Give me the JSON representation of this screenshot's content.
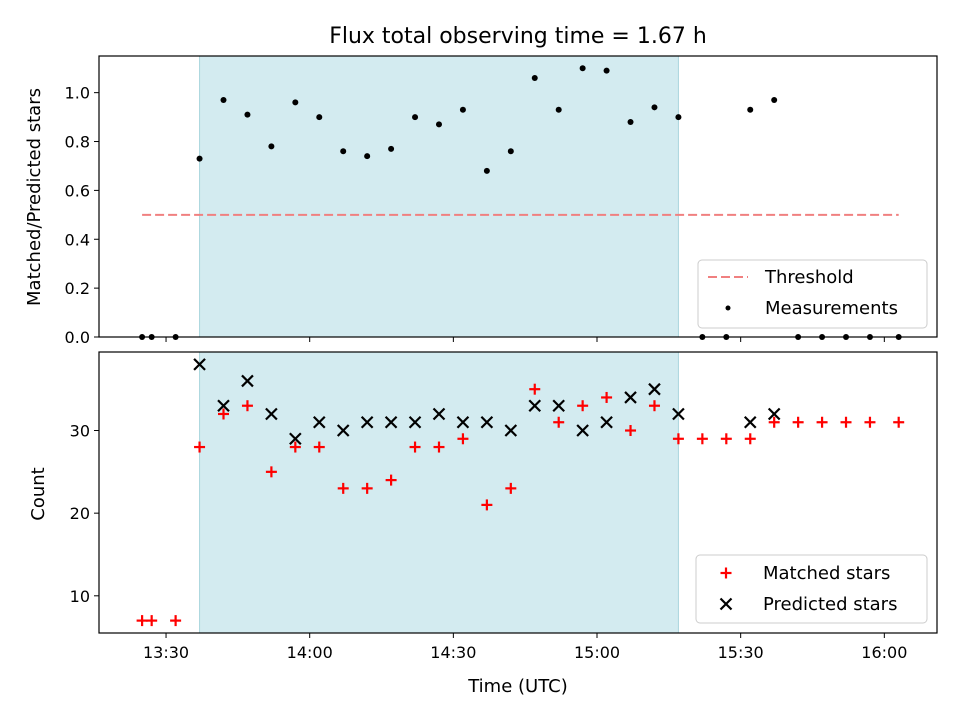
{
  "chart_data": [
    {
      "type": "scatter",
      "title": "Flux total observing time = 1.67 h",
      "xlabel": "",
      "ylabel": "Matched/Predicted stars",
      "ylim": [
        0,
        1.15
      ],
      "yticks": [
        "0.0",
        "0.2",
        "0.4",
        "0.6",
        "0.8",
        "1.0"
      ],
      "yticks_values": [
        0,
        0.2,
        0.4,
        0.6,
        0.8,
        1.0
      ],
      "threshold": {
        "label": "Threshold",
        "value": 0.5,
        "x_start": "13:25",
        "x_end": "16:03",
        "color": "#f08080"
      },
      "highlight": {
        "start": "13:37",
        "end": "15:17",
        "color": "#d3ebf0"
      },
      "legend_position": "lower-right",
      "series": [
        {
          "name": "Measurements",
          "color": "#000000",
          "points": [
            [
              "13:25",
              0.0
            ],
            [
              "13:27",
              0.0
            ],
            [
              "13:32",
              0.0
            ],
            [
              "13:37",
              0.73
            ],
            [
              "13:42",
              0.97
            ],
            [
              "13:47",
              0.91
            ],
            [
              "13:52",
              0.78
            ],
            [
              "13:57",
              0.96
            ],
            [
              "14:02",
              0.9
            ],
            [
              "14:07",
              0.76
            ],
            [
              "14:12",
              0.74
            ],
            [
              "14:17",
              0.77
            ],
            [
              "14:22",
              0.9
            ],
            [
              "14:27",
              0.87
            ],
            [
              "14:32",
              0.93
            ],
            [
              "14:37",
              0.68
            ],
            [
              "14:42",
              0.76
            ],
            [
              "14:47",
              1.06
            ],
            [
              "14:52",
              0.93
            ],
            [
              "14:57",
              1.1
            ],
            [
              "15:02",
              1.09
            ],
            [
              "15:07",
              0.88
            ],
            [
              "15:12",
              0.94
            ],
            [
              "15:17",
              0.9
            ],
            [
              "15:22",
              0.0
            ],
            [
              "15:27",
              0.0
            ],
            [
              "15:32",
              0.93
            ],
            [
              "15:37",
              0.97
            ],
            [
              "15:42",
              0.0
            ],
            [
              "15:47",
              0.0
            ],
            [
              "15:52",
              0.0
            ],
            [
              "15:57",
              0.0
            ],
            [
              "16:03",
              0.0
            ]
          ]
        }
      ]
    },
    {
      "type": "scatter",
      "title": "",
      "xlabel": "Time (UTC)",
      "ylabel": "Count",
      "ylim": [
        5.5,
        39.5
      ],
      "yticks": [
        "10",
        "20",
        "30"
      ],
      "yticks_values": [
        10,
        20,
        30
      ],
      "xlim": [
        "13:16",
        "16:11"
      ],
      "xticks": [
        "13:30",
        "14:00",
        "14:30",
        "15:00",
        "15:30",
        "16:00"
      ],
      "highlight": {
        "start": "13:37",
        "end": "15:17",
        "color": "#d3ebf0"
      },
      "legend_position": "lower-right",
      "series": [
        {
          "name": "Matched stars",
          "color": "#ff0000",
          "marker": "plus",
          "points": [
            [
              "13:25",
              7
            ],
            [
              "13:27",
              7
            ],
            [
              "13:32",
              7
            ],
            [
              "13:37",
              28
            ],
            [
              "13:42",
              32
            ],
            [
              "13:47",
              33
            ],
            [
              "13:52",
              25
            ],
            [
              "13:57",
              28
            ],
            [
              "14:02",
              28
            ],
            [
              "14:07",
              23
            ],
            [
              "14:12",
              23
            ],
            [
              "14:17",
              24
            ],
            [
              "14:22",
              28
            ],
            [
              "14:27",
              28
            ],
            [
              "14:32",
              29
            ],
            [
              "14:37",
              21
            ],
            [
              "14:42",
              23
            ],
            [
              "14:47",
              35
            ],
            [
              "14:52",
              31
            ],
            [
              "14:57",
              33
            ],
            [
              "15:02",
              34
            ],
            [
              "15:07",
              30
            ],
            [
              "15:12",
              33
            ],
            [
              "15:17",
              29
            ],
            [
              "15:22",
              29
            ],
            [
              "15:27",
              29
            ],
            [
              "15:32",
              29
            ],
            [
              "15:37",
              31
            ],
            [
              "15:42",
              31
            ],
            [
              "15:47",
              31
            ],
            [
              "15:52",
              31
            ],
            [
              "15:57",
              31
            ],
            [
              "16:03",
              31
            ]
          ]
        },
        {
          "name": "Predicted stars",
          "color": "#000000",
          "marker": "x",
          "points": [
            [
              "13:37",
              38
            ],
            [
              "13:42",
              33
            ],
            [
              "13:47",
              36
            ],
            [
              "13:52",
              32
            ],
            [
              "13:57",
              29
            ],
            [
              "14:02",
              31
            ],
            [
              "14:07",
              30
            ],
            [
              "14:12",
              31
            ],
            [
              "14:17",
              31
            ],
            [
              "14:22",
              31
            ],
            [
              "14:27",
              32
            ],
            [
              "14:32",
              31
            ],
            [
              "14:37",
              31
            ],
            [
              "14:42",
              30
            ],
            [
              "14:47",
              33
            ],
            [
              "14:52",
              33
            ],
            [
              "14:57",
              30
            ],
            [
              "15:02",
              31
            ],
            [
              "15:07",
              34
            ],
            [
              "15:12",
              35
            ],
            [
              "15:17",
              32
            ],
            [
              "15:32",
              31
            ],
            [
              "15:37",
              32
            ]
          ]
        }
      ]
    }
  ]
}
